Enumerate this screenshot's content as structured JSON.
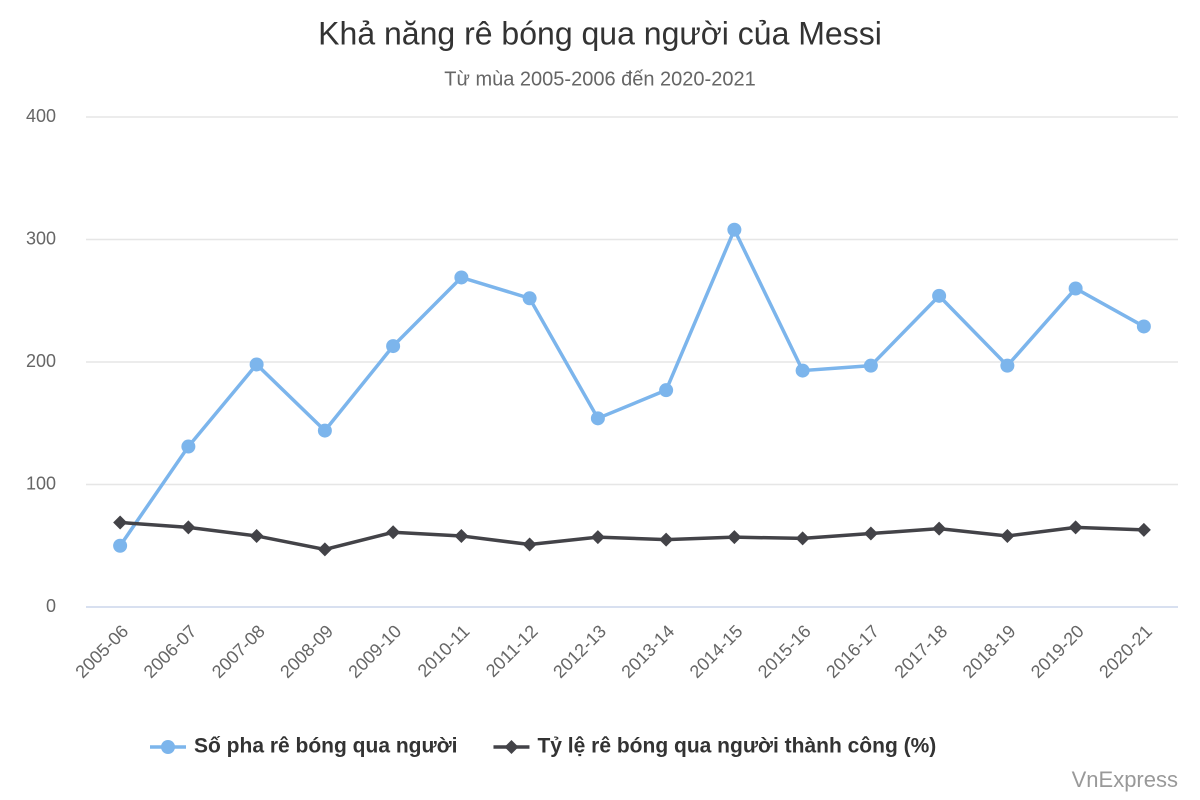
{
  "chart_data": {
    "type": "line",
    "title": "Khả năng rê bóng qua người của Messi",
    "subtitle": "Từ mùa 2005-2006 đến 2020-2021",
    "source": "VnExpress",
    "categories": [
      "2005-06",
      "2006-07",
      "2007-08",
      "2008-09",
      "2009-10",
      "2010-11",
      "2011-12",
      "2012-13",
      "2013-14",
      "2014-15",
      "2015-16",
      "2016-17",
      "2017-18",
      "2018-19",
      "2019-20",
      "2020-21"
    ],
    "series": [
      {
        "name": "Số pha rê bóng qua người",
        "color": "#7cb5ec",
        "marker": "circle",
        "values": [
          50,
          131,
          198,
          144,
          213,
          269,
          252,
          154,
          177,
          308,
          193,
          197,
          254,
          197,
          260,
          229
        ]
      },
      {
        "name": "Tỷ lệ rê bóng qua người thành công (%)",
        "color": "#434348",
        "marker": "diamond",
        "values": [
          69,
          65,
          58,
          47,
          61,
          58,
          51,
          57,
          55,
          57,
          56,
          60,
          64,
          58,
          65,
          63
        ]
      }
    ],
    "ylim": [
      0,
      400
    ],
    "yticks": [
      0,
      100,
      200,
      300,
      400
    ],
    "grid": true,
    "legend": "bottom"
  }
}
